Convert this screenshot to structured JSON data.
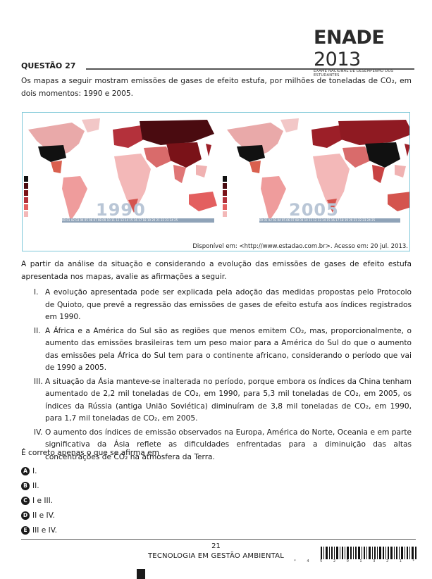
{
  "brand": {
    "title": "ENADE",
    "year": "2013",
    "subtitle": "EXAME NACIONAL DE DESEMPENHO DOS ESTUDANTES"
  },
  "question": {
    "label": "QUESTÃO 27",
    "intro": "Os mapas a seguir mostram emissões de gases de efeito estufa, por milhões de toneladas de CO₂, em dois momentos: 1990 e 2005.",
    "maps": {
      "left_year": "1990",
      "right_year": "2005",
      "timeline_text": "00 01 02 03 04 05 06 07 08 09 10 11 12 13 14 15 16 17 18 19 20 21 22 23 24 25",
      "source": "Disponível em: <http://www.estadao.com.br>. Acesso em: 20 jul. 2013."
    },
    "analysis": "A partir da análise da situação e considerando a evolução das emissões de gases de efeito estufa apresentada nos mapas, avalie as afirmações a seguir.",
    "items": [
      {
        "num": "I.",
        "text": "A evolução apresentada pode ser explicada pela adoção das medidas propostas pelo Protocolo de Quioto, que prevê a regressão das emissões de gases de efeito estufa aos índices registrados em 1990."
      },
      {
        "num": "II.",
        "text": "A África e a América do Sul são as regiões que menos emitem CO₂, mas, proporcionalmente, o aumento das emissões brasileiras tem um peso maior para a América do Sul do que o aumento das emissões pela África do Sul tem para o continente africano, considerando o período que vai de 1990 a 2005."
      },
      {
        "num": "III.",
        "text": "A situação da Ásia manteve-se inalterada no período, porque embora os índices da China tenham aumentado de 2,2 mil toneladas de CO₂, em 1990, para 5,3 mil toneladas de CO₂, em 2005, os índices da Rússia (antiga União Soviética) diminuíram de 3,8 mil toneladas de CO₂, em 1990, para 1,7 mil toneladas de CO₂, em 2005."
      },
      {
        "num": "IV.",
        "text": "O aumento dos índices de emissão observados na Europa, América do Norte, Oceania e em parte significativa da Ásia reflete as dificuldades enfrentadas para a diminuição das altas concentrações de CO₂ na atmosfera da Terra."
      }
    ],
    "prompt": "É correto apenas o que se afirma em",
    "options": [
      {
        "letter": "A",
        "text": "I."
      },
      {
        "letter": "B",
        "text": "II."
      },
      {
        "letter": "C",
        "text": "I e III."
      },
      {
        "letter": "D",
        "text": "II e IV."
      },
      {
        "letter": "E",
        "text": "III e IV."
      }
    ]
  },
  "footer": {
    "page": "21",
    "course": "TECNOLOGIA EM GESTÃO AMBIENTAL",
    "barcode_digits": "* 4 5 2 0 1 3 2 1 *"
  }
}
